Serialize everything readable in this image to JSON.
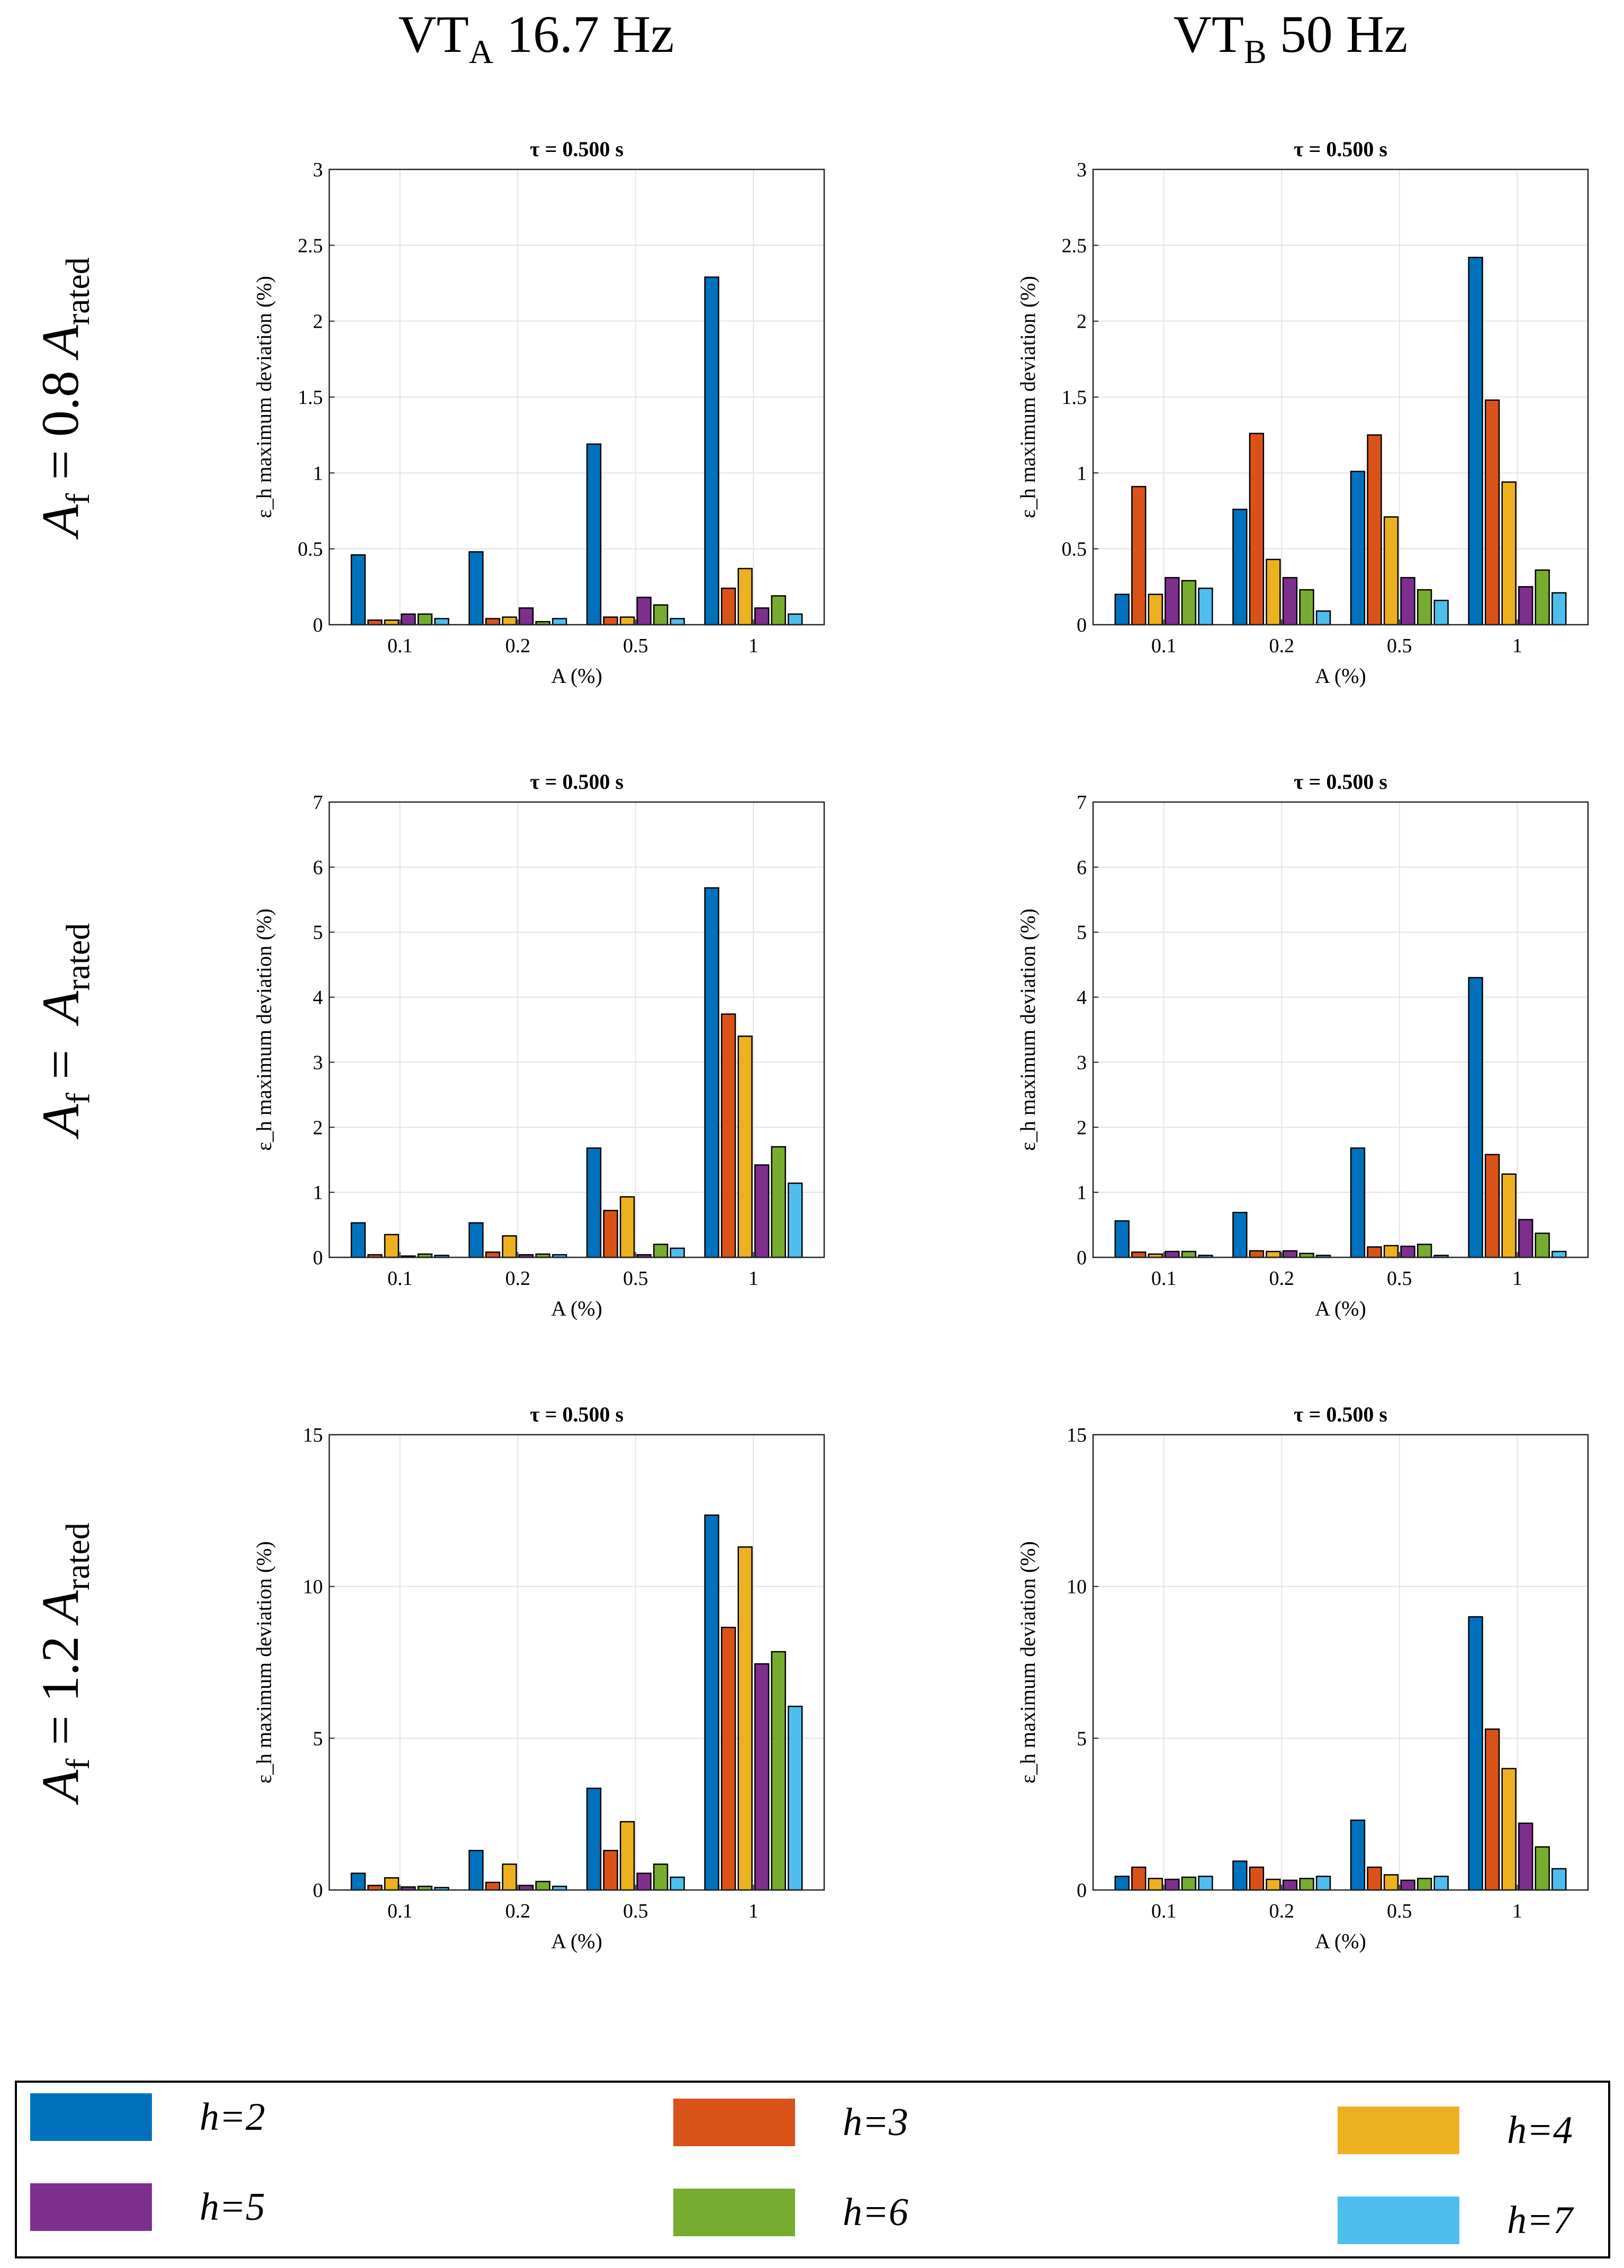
{
  "columns": [
    {
      "base": "VT",
      "sub": "A",
      "rest": " 16.7 Hz"
    },
    {
      "base": "VT",
      "sub": "B",
      "rest": " 50 Hz"
    }
  ],
  "rows": [
    {
      "var": "A",
      "sub": "f",
      "eq": " = 0.8 ",
      "var2": "A",
      "sub2": "rated"
    },
    {
      "var": "A",
      "sub": "f",
      "eq": " =  ",
      "var2": "A",
      "sub2": "rated"
    },
    {
      "var": "A",
      "sub": "f",
      "eq": " = 1.2 ",
      "var2": "A",
      "sub2": "rated"
    }
  ],
  "legend": [
    {
      "label": "h=2",
      "color": "#0072BD"
    },
    {
      "label": "h=3",
      "color": "#D95319"
    },
    {
      "label": "h=4",
      "color": "#EDB120"
    },
    {
      "label": "h=5",
      "color": "#7E2F8E"
    },
    {
      "label": "h=6",
      "color": "#77AC30"
    },
    {
      "label": "h=7",
      "color": "#4DBEEE"
    }
  ],
  "chart_data": [
    {
      "type": "bar",
      "title": "τ = 0.500 s",
      "xlabel": "A (%)",
      "ylabel": "ε_h maximum deviation (%)",
      "categories": [
        "0.1",
        "0.2",
        "0.5",
        "1"
      ],
      "ylim": [
        0,
        3
      ],
      "yticks": [
        0,
        0.5,
        1,
        1.5,
        2,
        2.5,
        3
      ],
      "grid": true,
      "series": [
        {
          "name": "h=2",
          "values": [
            0.46,
            0.48,
            1.19,
            2.29
          ]
        },
        {
          "name": "h=3",
          "values": [
            0.03,
            0.04,
            0.05,
            0.24
          ]
        },
        {
          "name": "h=4",
          "values": [
            0.03,
            0.05,
            0.05,
            0.37
          ]
        },
        {
          "name": "h=5",
          "values": [
            0.07,
            0.11,
            0.18,
            0.11
          ]
        },
        {
          "name": "h=6",
          "values": [
            0.07,
            0.02,
            0.13,
            0.19
          ]
        },
        {
          "name": "h=7",
          "values": [
            0.04,
            0.04,
            0.04,
            0.07
          ]
        }
      ]
    },
    {
      "type": "bar",
      "title": "τ = 0.500 s",
      "xlabel": "A (%)",
      "ylabel": "ε_h maximum deviation (%)",
      "categories": [
        "0.1",
        "0.2",
        "0.5",
        "1"
      ],
      "ylim": [
        0,
        3
      ],
      "yticks": [
        0,
        0.5,
        1,
        1.5,
        2,
        2.5,
        3
      ],
      "grid": true,
      "series": [
        {
          "name": "h=2",
          "values": [
            0.2,
            0.76,
            1.01,
            2.42
          ]
        },
        {
          "name": "h=3",
          "values": [
            0.91,
            1.26,
            1.25,
            1.48
          ]
        },
        {
          "name": "h=4",
          "values": [
            0.2,
            0.43,
            0.71,
            0.94
          ]
        },
        {
          "name": "h=5",
          "values": [
            0.31,
            0.31,
            0.31,
            0.25
          ]
        },
        {
          "name": "h=6",
          "values": [
            0.29,
            0.23,
            0.23,
            0.36
          ]
        },
        {
          "name": "h=7",
          "values": [
            0.24,
            0.09,
            0.16,
            0.21
          ]
        }
      ]
    },
    {
      "type": "bar",
      "title": "τ = 0.500 s",
      "xlabel": "A (%)",
      "ylabel": "ε_h maximum deviation (%)",
      "categories": [
        "0.1",
        "0.2",
        "0.5",
        "1"
      ],
      "ylim": [
        0,
        7
      ],
      "yticks": [
        0,
        1,
        2,
        3,
        4,
        5,
        6,
        7
      ],
      "grid": true,
      "series": [
        {
          "name": "h=2",
          "values": [
            0.53,
            0.53,
            1.68,
            5.68
          ]
        },
        {
          "name": "h=3",
          "values": [
            0.04,
            0.08,
            0.72,
            3.74
          ]
        },
        {
          "name": "h=4",
          "values": [
            0.35,
            0.33,
            0.93,
            3.4
          ]
        },
        {
          "name": "h=5",
          "values": [
            0.02,
            0.04,
            0.04,
            1.42
          ]
        },
        {
          "name": "h=6",
          "values": [
            0.05,
            0.05,
            0.2,
            1.7
          ]
        },
        {
          "name": "h=7",
          "values": [
            0.03,
            0.04,
            0.14,
            1.14
          ]
        }
      ]
    },
    {
      "type": "bar",
      "title": "τ = 0.500 s",
      "xlabel": "A (%)",
      "ylabel": "ε_h maximum deviation (%)",
      "categories": [
        "0.1",
        "0.2",
        "0.5",
        "1"
      ],
      "ylim": [
        0,
        7
      ],
      "yticks": [
        0,
        1,
        2,
        3,
        4,
        5,
        6,
        7
      ],
      "grid": true,
      "series": [
        {
          "name": "h=2",
          "values": [
            0.56,
            0.69,
            1.68,
            4.3
          ]
        },
        {
          "name": "h=3",
          "values": [
            0.08,
            0.1,
            0.16,
            1.58
          ]
        },
        {
          "name": "h=4",
          "values": [
            0.05,
            0.09,
            0.18,
            1.28
          ]
        },
        {
          "name": "h=5",
          "values": [
            0.09,
            0.1,
            0.17,
            0.58
          ]
        },
        {
          "name": "h=6",
          "values": [
            0.09,
            0.06,
            0.2,
            0.37
          ]
        },
        {
          "name": "h=7",
          "values": [
            0.03,
            0.03,
            0.03,
            0.09
          ]
        }
      ]
    },
    {
      "type": "bar",
      "title": "τ = 0.500 s",
      "xlabel": "A (%)",
      "ylabel": "ε_h maximum deviation (%)",
      "categories": [
        "0.1",
        "0.2",
        "0.5",
        "1"
      ],
      "ylim": [
        0,
        15
      ],
      "yticks": [
        0,
        5,
        10,
        15
      ],
      "grid": true,
      "series": [
        {
          "name": "h=2",
          "values": [
            0.55,
            1.3,
            3.35,
            12.35
          ]
        },
        {
          "name": "h=3",
          "values": [
            0.15,
            0.25,
            1.3,
            8.65
          ]
        },
        {
          "name": "h=4",
          "values": [
            0.4,
            0.85,
            2.25,
            11.3
          ]
        },
        {
          "name": "h=5",
          "values": [
            0.1,
            0.15,
            0.55,
            7.45
          ]
        },
        {
          "name": "h=6",
          "values": [
            0.12,
            0.28,
            0.85,
            7.85
          ]
        },
        {
          "name": "h=7",
          "values": [
            0.08,
            0.12,
            0.42,
            6.05
          ]
        }
      ]
    },
    {
      "type": "bar",
      "title": "τ = 0.500 s",
      "xlabel": "A (%)",
      "ylabel": "ε_h maximum deviation (%)",
      "categories": [
        "0.1",
        "0.2",
        "0.5",
        "1"
      ],
      "ylim": [
        0,
        15
      ],
      "yticks": [
        0,
        5,
        10,
        15
      ],
      "grid": true,
      "series": [
        {
          "name": "h=2",
          "values": [
            0.45,
            0.95,
            2.3,
            9.0
          ]
        },
        {
          "name": "h=3",
          "values": [
            0.75,
            0.75,
            0.75,
            5.3
          ]
        },
        {
          "name": "h=4",
          "values": [
            0.38,
            0.35,
            0.5,
            4.0
          ]
        },
        {
          "name": "h=5",
          "values": [
            0.35,
            0.32,
            0.32,
            2.2
          ]
        },
        {
          "name": "h=6",
          "values": [
            0.42,
            0.38,
            0.38,
            1.42
          ]
        },
        {
          "name": "h=7",
          "values": [
            0.45,
            0.45,
            0.45,
            0.7
          ]
        }
      ]
    }
  ]
}
